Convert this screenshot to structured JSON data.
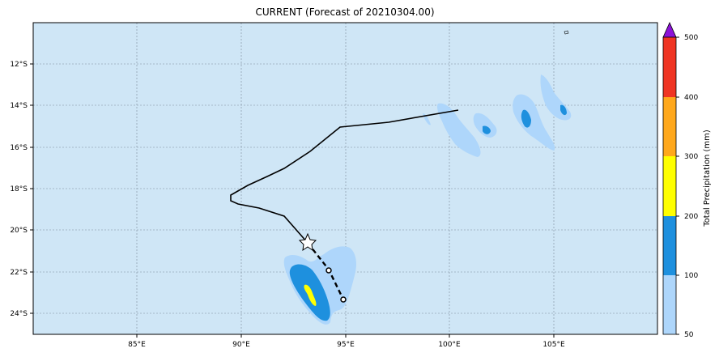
{
  "title": "CURRENT (Forecast of 20210304.00)",
  "map": {
    "ocean_color": "#cfe6f6",
    "grid": true,
    "lon_ticks": [
      "85°E",
      "90°E",
      "95°E",
      "100°E",
      "105°E"
    ],
    "lat_ticks": [
      "12°S",
      "14°S",
      "16°S",
      "18°S",
      "20°S",
      "22°S",
      "24°S"
    ]
  },
  "colorbar": {
    "label": "Total Precipitation (mm)",
    "ticks": [
      "50",
      "100",
      "200",
      "300",
      "400",
      "500"
    ],
    "colors": [
      "#aed6fb",
      "#1e90de",
      "#ffff00",
      "#ffa81c",
      "#ef3523"
    ],
    "extend_color": "#8c12d8"
  },
  "track": {
    "past_color": "#000000",
    "forecast_style": "dashed",
    "current_position_marker": "star"
  }
}
